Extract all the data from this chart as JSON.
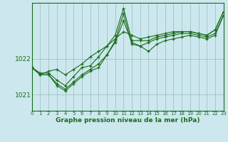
{
  "xlabel": "Graphe pression niveau de la mer (hPa)",
  "background_color": "#cce8ee",
  "plot_bg_color": "#cce8ee",
  "grid_color": "#99bbbb",
  "line_color": "#1a6b1a",
  "xlim": [
    0,
    23
  ],
  "ylim": [
    1020.55,
    1023.55
  ],
  "yticks": [
    1021,
    1022
  ],
  "xticks": [
    0,
    1,
    2,
    3,
    4,
    5,
    6,
    7,
    8,
    9,
    10,
    11,
    12,
    13,
    14,
    15,
    16,
    17,
    18,
    19,
    20,
    21,
    22,
    23
  ],
  "series": [
    [
      1021.75,
      1021.55,
      1021.55,
      1021.3,
      1021.15,
      1021.35,
      1021.55,
      1021.7,
      1021.85,
      1022.1,
      1022.45,
      1023.05,
      1022.45,
      1022.35,
      1022.45,
      1022.55,
      1022.6,
      1022.65,
      1022.7,
      1022.7,
      1022.65,
      1022.6,
      1022.7,
      1023.2
    ],
    [
      1021.75,
      1021.55,
      1021.55,
      1021.25,
      1021.1,
      1021.3,
      1021.5,
      1021.65,
      1021.75,
      1022.1,
      1022.5,
      1023.25,
      1022.4,
      1022.35,
      1022.2,
      1022.4,
      1022.5,
      1022.55,
      1022.6,
      1022.65,
      1022.6,
      1022.55,
      1022.65,
      1023.2
    ],
    [
      1021.75,
      1021.6,
      1021.6,
      1021.4,
      1021.25,
      1021.5,
      1021.75,
      1021.8,
      1022.05,
      1022.35,
      1022.65,
      1023.4,
      1022.5,
      1022.5,
      1022.5,
      1022.6,
      1022.65,
      1022.7,
      1022.75,
      1022.75,
      1022.7,
      1022.65,
      1022.8,
      1023.3
    ],
    [
      1021.75,
      1021.55,
      1021.65,
      1021.7,
      1021.55,
      1021.7,
      1021.85,
      1022.05,
      1022.2,
      1022.35,
      1022.55,
      1022.75,
      1022.65,
      1022.55,
      1022.6,
      1022.65,
      1022.7,
      1022.75,
      1022.75,
      1022.75,
      1022.7,
      1022.65,
      1022.8,
      1023.3
    ]
  ]
}
